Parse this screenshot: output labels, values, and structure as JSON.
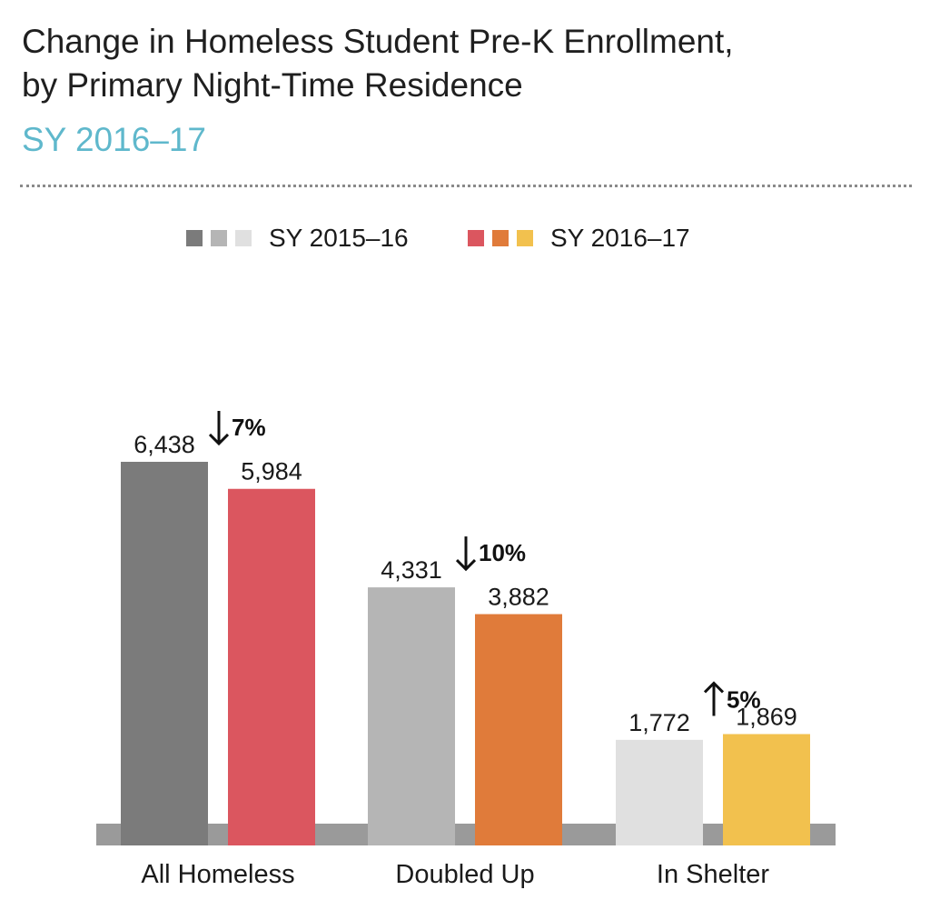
{
  "title_lines": [
    "Change in Homeless Student Pre-K Enrollment,",
    "by Primary Night-Time Residence"
  ],
  "subtitle": "SY 2016–17",
  "colors": {
    "title": "#1f1f1f",
    "subtitle": "#5fb8cc",
    "baseline": "#9a9a9a",
    "series_2015_16": [
      "#7b7b7b",
      "#b5b5b5",
      "#e0e0e0"
    ],
    "series_2016_17": [
      "#db565f",
      "#e07b3a",
      "#f2c14e"
    ]
  },
  "legend": [
    {
      "label": "SY 2015–16",
      "swatches": [
        "#7b7b7b",
        "#b5b5b5",
        "#e0e0e0"
      ]
    },
    {
      "label": "SY 2016–17",
      "swatches": [
        "#db565f",
        "#e07b3a",
        "#f2c14e"
      ]
    }
  ],
  "chart_data": {
    "type": "bar",
    "categories": [
      "All Homeless",
      "Doubled Up",
      "In Shelter"
    ],
    "series": [
      {
        "name": "SY 2015–16",
        "values": [
          6438,
          4331,
          1772
        ],
        "value_labels": [
          "6,438",
          "4,331",
          "1,772"
        ]
      },
      {
        "name": "SY 2016–17",
        "values": [
          5984,
          3882,
          1869
        ],
        "value_labels": [
          "5,984",
          "3,882",
          "1,869"
        ]
      }
    ],
    "annotations": [
      {
        "category": "All Homeless",
        "direction": "down",
        "text": "7%"
      },
      {
        "category": "Doubled Up",
        "direction": "down",
        "text": "10%"
      },
      {
        "category": "In Shelter",
        "direction": "up",
        "text": "5%"
      }
    ],
    "ylim": [
      0,
      8000
    ],
    "grid": false,
    "legend_position": "top-center"
  }
}
